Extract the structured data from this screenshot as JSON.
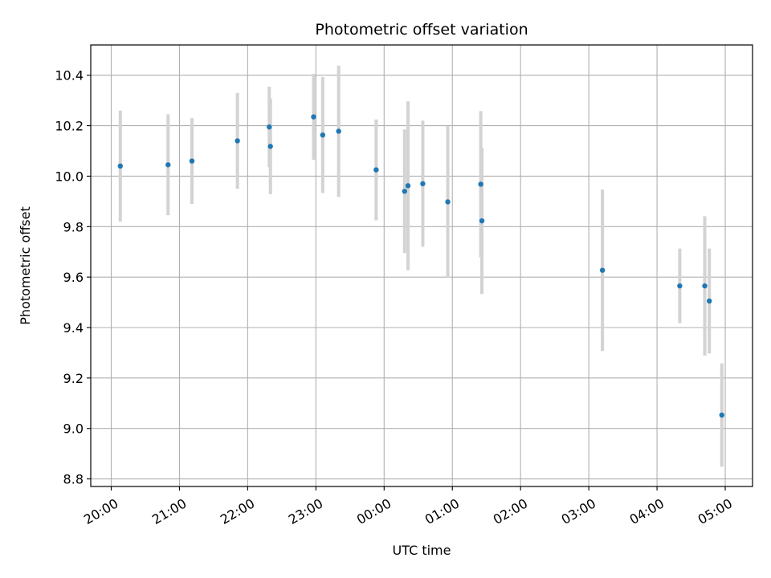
{
  "chart_data": {
    "type": "scatter",
    "title": "Photometric offset variation",
    "xlabel": "UTC time",
    "ylabel": "Photometric offset",
    "x_ticks": [
      "20:00",
      "21:00",
      "22:00",
      "23:00",
      "00:00",
      "01:00",
      "02:00",
      "03:00",
      "04:00",
      "05:00"
    ],
    "y_ticks": [
      "8.8",
      "9.0",
      "9.2",
      "9.4",
      "9.6",
      "9.8",
      "10.0",
      "10.2",
      "10.4"
    ],
    "xlim_hours_from_first_tick": [
      -0.3,
      9.4
    ],
    "ylim": [
      8.77,
      10.52
    ],
    "grid": true,
    "marker_color": "#1f77b4",
    "errorbar_color": "#d3d3d3",
    "points": [
      {
        "time": "20:08",
        "y": 10.04,
        "err": 0.22
      },
      {
        "time": "20:50",
        "y": 10.045,
        "err": 0.2
      },
      {
        "time": "21:11",
        "y": 10.06,
        "err": 0.17
      },
      {
        "time": "21:51",
        "y": 10.14,
        "err": 0.19
      },
      {
        "time": "22:19",
        "y": 10.195,
        "err": 0.16
      },
      {
        "time": "22:20",
        "y": 10.118,
        "err": 0.19
      },
      {
        "time": "22:58",
        "y": 10.235,
        "err": 0.17
      },
      {
        "time": "23:06",
        "y": 10.163,
        "err": 0.23
      },
      {
        "time": "23:20",
        "y": 10.178,
        "err": 0.26
      },
      {
        "time": "23:53",
        "y": 10.025,
        "err": 0.2
      },
      {
        "time": "00:18",
        "y": 9.94,
        "err": 0.245
      },
      {
        "time": "00:21",
        "y": 9.962,
        "err": 0.335
      },
      {
        "time": "00:34",
        "y": 9.97,
        "err": 0.25
      },
      {
        "time": "00:56",
        "y": 9.898,
        "err": 0.3
      },
      {
        "time": "01:25",
        "y": 9.968,
        "err": 0.29
      },
      {
        "time": "01:26",
        "y": 9.823,
        "err": 0.29
      },
      {
        "time": "03:12",
        "y": 9.627,
        "err": 0.32
      },
      {
        "time": "04:20",
        "y": 9.565,
        "err": 0.148
      },
      {
        "time": "04:42",
        "y": 9.565,
        "err": 0.276
      },
      {
        "time": "04:46",
        "y": 9.505,
        "err": 0.208
      },
      {
        "time": "04:57",
        "y": 9.053,
        "err": 0.205
      }
    ]
  }
}
